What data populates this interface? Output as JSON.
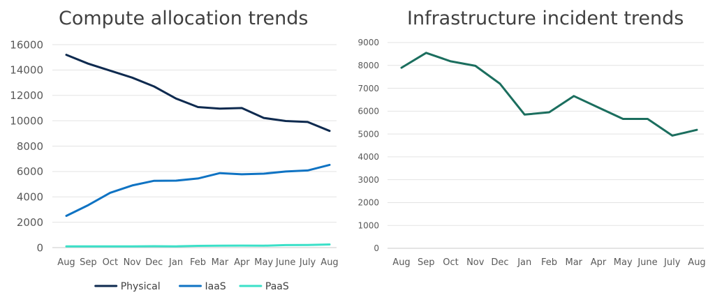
{
  "chart_data": [
    {
      "type": "line",
      "title": "Compute allocation trends",
      "xlabel": "",
      "ylabel": "",
      "categories": [
        "Aug",
        "Sep",
        "Oct",
        "Nov",
        "Dec",
        "Jan",
        "Feb",
        "Mar",
        "Apr",
        "May",
        "June",
        "July",
        "Aug"
      ],
      "y_ticks": [
        "0",
        "2000",
        "4000",
        "6000",
        "8000",
        "10000",
        "12000",
        "14000",
        "16000"
      ],
      "ylim": [
        0,
        16000
      ],
      "grid": true,
      "legend": "bottom",
      "series": [
        {
          "name": "Physical",
          "color": "#0e2a4f",
          "values": [
            15200,
            14500,
            13950,
            13400,
            12700,
            11750,
            11080,
            10950,
            11000,
            10220,
            9980,
            9900,
            9200
          ]
        },
        {
          "name": "IaaS",
          "color": "#0f73c3",
          "values": [
            2500,
            3350,
            4320,
            4900,
            5270,
            5280,
            5450,
            5870,
            5780,
            5830,
            6000,
            6080,
            6520
          ]
        },
        {
          "name": "PaaS",
          "color": "#3be0c8",
          "values": [
            100,
            100,
            100,
            100,
            110,
            100,
            140,
            150,
            160,
            150,
            200,
            210,
            250
          ]
        }
      ]
    },
    {
      "type": "line",
      "title": "Infrastructure incident trends",
      "xlabel": "",
      "ylabel": "",
      "categories": [
        "Aug",
        "Sep",
        "Oct",
        "Nov",
        "Dec",
        "Jan",
        "Feb",
        "Mar",
        "Apr",
        "May",
        "June",
        "July",
        "Aug"
      ],
      "y_ticks": [
        "0",
        "1000",
        "2000",
        "3000",
        "4000",
        "5000",
        "6000",
        "7000",
        "8000",
        "9000"
      ],
      "ylim": [
        0,
        9000
      ],
      "grid": true,
      "legend": "none",
      "series": [
        {
          "color": "#1b6e5e",
          "values": [
            7900,
            8550,
            8180,
            7980,
            7200,
            5850,
            5950,
            6660,
            6160,
            5660,
            5660,
            4930,
            5180
          ]
        }
      ]
    }
  ]
}
